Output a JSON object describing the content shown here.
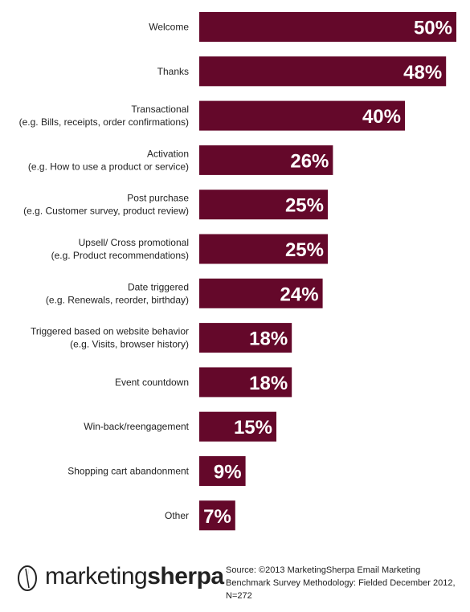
{
  "chart_data": {
    "type": "bar",
    "orientation": "horizontal",
    "categories": [
      [
        "Welcome"
      ],
      [
        "Thanks"
      ],
      [
        "Transactional",
        "(e.g. Bills, receipts, order confirmations)"
      ],
      [
        "Activation",
        "(e.g. How to use a product or service)"
      ],
      [
        "Post purchase",
        "(e.g.  Customer survey, product review)"
      ],
      [
        "Upsell/ Cross promotional",
        "(e.g.  Product recommendations)"
      ],
      [
        "Date triggered",
        "(e.g.  Renewals, reorder, birthday)"
      ],
      [
        "Triggered based on website behavior",
        "(e.g. Visits, browser history)"
      ],
      [
        "Event countdown"
      ],
      [
        "Win-back/reengagement"
      ],
      [
        "Shopping cart abandonment"
      ],
      [
        "Other"
      ]
    ],
    "values": [
      50,
      48,
      40,
      26,
      25,
      25,
      24,
      18,
      18,
      15,
      9,
      7
    ],
    "data_labels": [
      "50%",
      "48%",
      "40%",
      "26%",
      "25%",
      "25%",
      "24%",
      "18%",
      "18%",
      "15%",
      "9%",
      "7%"
    ],
    "xlim": [
      0,
      50
    ],
    "grid": false,
    "legend": "none"
  },
  "colors": {
    "bar": "#64082a",
    "label_text": "#222222",
    "value_text": "#ffffff"
  },
  "footer": {
    "logo_part1": "marketing",
    "logo_part2": "sherpa",
    "source": "Source: ©2013 MarketingSherpa Email Marketing Benchmark Survey  Methodology:  Fielded December 2012, N=272"
  }
}
